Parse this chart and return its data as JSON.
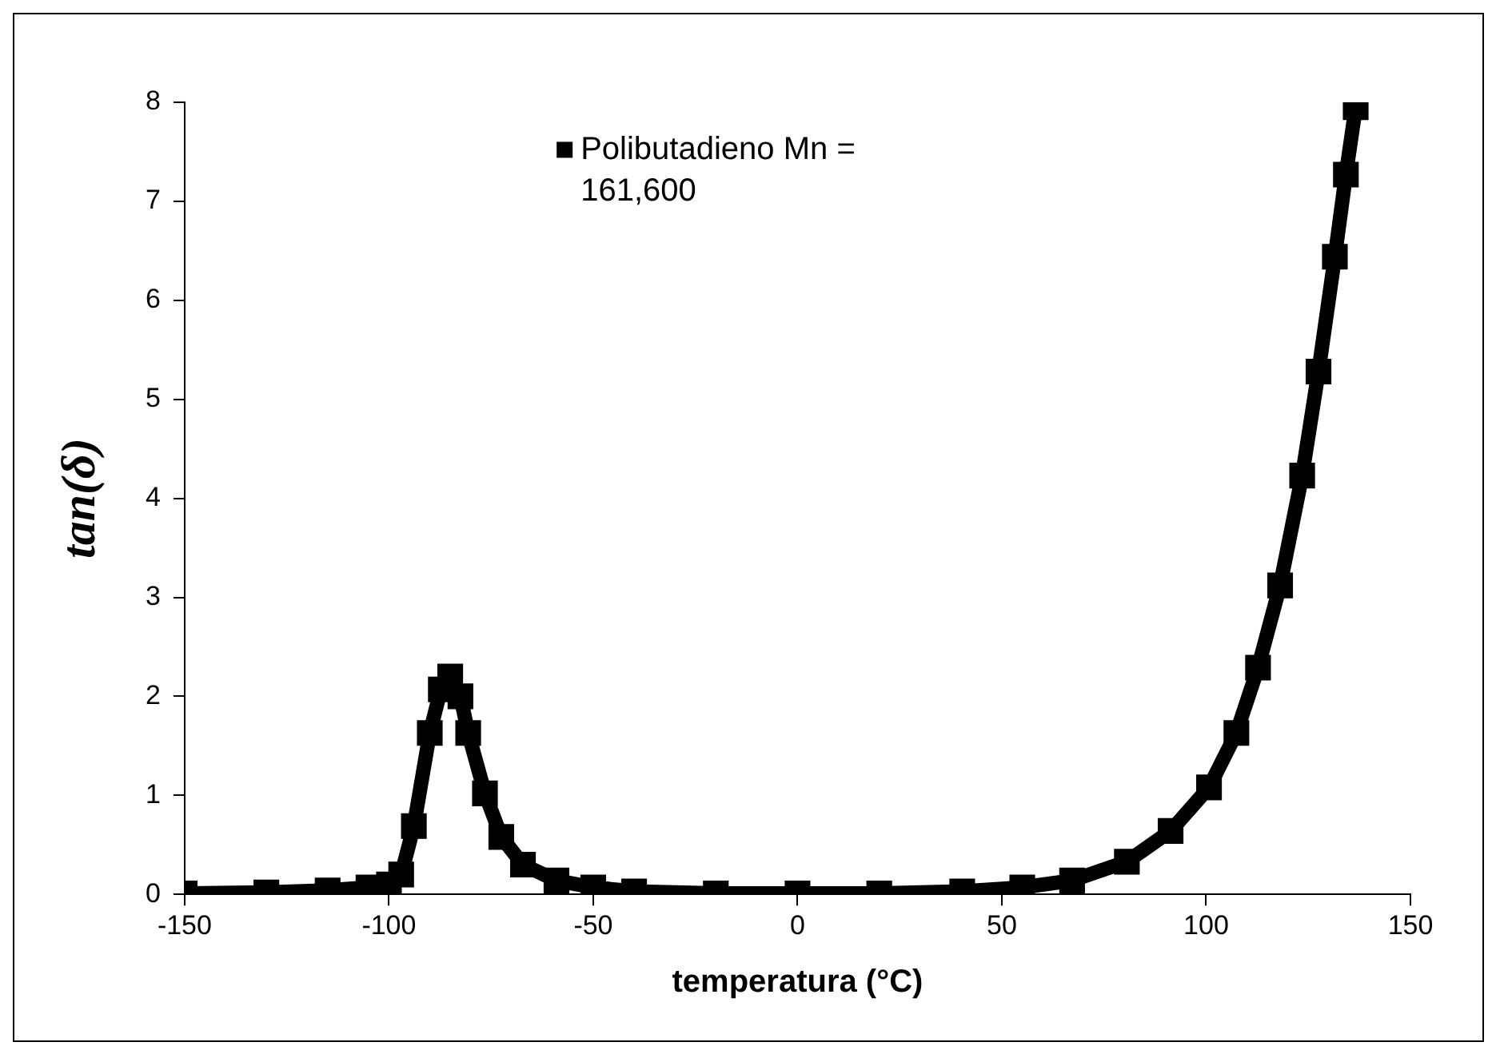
{
  "chart_data": {
    "type": "line",
    "xlabel": "temperatura (°C)",
    "ylabel": "tan(δ)",
    "xlim": [
      -150,
      150
    ],
    "xticks": [
      -150,
      -100,
      -50,
      0,
      50,
      100,
      150
    ],
    "ylim": [
      0,
      8
    ],
    "yticks": [
      0,
      1,
      2,
      3,
      4,
      5,
      6,
      7,
      8
    ],
    "grid": false,
    "legend": "top",
    "marker": "square",
    "line_style": "solid",
    "series": [
      {
        "name": "Polibutadieno Mn = 161,600",
        "color": "#000000",
        "x": [
          -150,
          -130,
          -115,
          -105,
          -100,
          -97,
          -93.9,
          -90,
          -87.3,
          -85,
          -82.5,
          -80.6,
          -76.5,
          -72.5,
          -67.2,
          -59,
          -50,
          -40,
          -20,
          0,
          20,
          40.3,
          55,
          67.2,
          80.6,
          91.3,
          100.7,
          107.4,
          112.7,
          118.1,
          123.5,
          127.5,
          131.5,
          134.2,
          136.6
        ],
        "values": [
          0.01,
          0.02,
          0.04,
          0.07,
          0.1,
          0.2,
          0.69,
          1.63,
          2.07,
          2.2,
          2.0,
          1.63,
          1.02,
          0.58,
          0.3,
          0.14,
          0.07,
          0.03,
          0.01,
          0.01,
          0.01,
          0.03,
          0.07,
          0.14,
          0.33,
          0.64,
          1.08,
          1.63,
          2.29,
          3.12,
          4.23,
          5.28,
          6.44,
          7.27,
          7.95
        ]
      }
    ]
  }
}
